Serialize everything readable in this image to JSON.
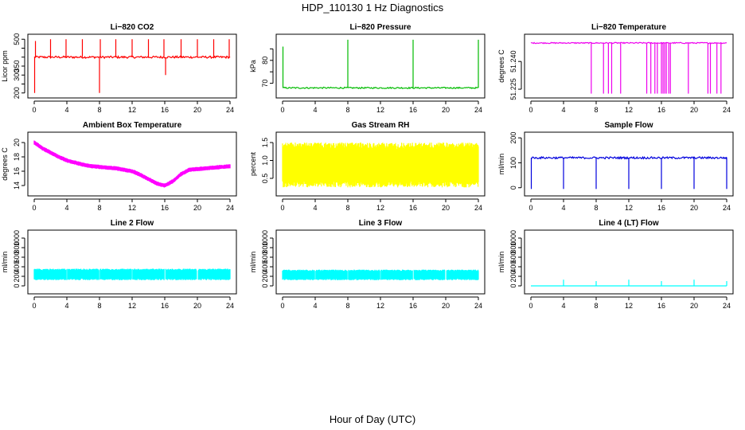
{
  "figure": {
    "title": "HDP_110130  1 Hz Diagnostics",
    "xlabel": "Hour of Day (UTC)"
  },
  "chart_data": [
    {
      "type": "line",
      "title": "Li−820 CO2",
      "ylabel": "Licor ppm",
      "color": "#ff0000",
      "xlim": [
        0,
        24
      ],
      "xticks": [
        0,
        4,
        8,
        12,
        16,
        20,
        24
      ],
      "xtick_labels": [
        "0",
        "4",
        "8",
        "12",
        "16",
        "20",
        "24"
      ],
      "ylim": [
        190,
        510
      ],
      "yticks": [
        200,
        250,
        300,
        350,
        400,
        450,
        500
      ],
      "ytick_labels": [
        "200",
        "",
        "300",
        "350",
        "",
        "",
        "500"
      ],
      "baseline": 400,
      "noise": 6,
      "spikes": [
        [
          0.05,
          200
        ],
        [
          0.15,
          490
        ],
        [
          2,
          500
        ],
        [
          3.9,
          500
        ],
        [
          5.9,
          500
        ],
        [
          8,
          200
        ],
        [
          8.1,
          500
        ],
        [
          10,
          500
        ],
        [
          12,
          500
        ],
        [
          14,
          500
        ],
        [
          15.9,
          500
        ],
        [
          16.1,
          300
        ],
        [
          18,
          500
        ],
        [
          20,
          500
        ],
        [
          22,
          500
        ],
        [
          23.9,
          500
        ]
      ]
    },
    {
      "type": "line",
      "title": "Li−820 Pressure",
      "ylabel": "kPa",
      "color": "#00bb00",
      "xlim": [
        0,
        24
      ],
      "xticks": [
        0,
        4,
        8,
        12,
        16,
        20,
        24
      ],
      "xtick_labels": [
        "0",
        "4",
        "8",
        "12",
        "16",
        "20",
        "24"
      ],
      "ylim": [
        65,
        90
      ],
      "yticks": [
        70,
        75,
        80,
        85
      ],
      "ytick_labels": [
        "70",
        "",
        "80",
        ""
      ],
      "baseline": 68,
      "noise": 0.3,
      "spikes": [
        [
          0.05,
          86
        ],
        [
          8,
          89
        ],
        [
          16,
          89
        ],
        [
          24,
          89
        ]
      ]
    },
    {
      "type": "line",
      "title": "Li−820 Temperature",
      "ylabel": "degrees C",
      "color": "#ee00ee",
      "xlim": [
        0,
        24
      ],
      "xticks": [
        0,
        4,
        8,
        12,
        16,
        20,
        24
      ],
      "xtick_labels": [
        "0",
        "4",
        "8",
        "12",
        "16",
        "20",
        "24"
      ],
      "ylim": [
        51.222,
        51.253
      ],
      "yticks": [
        51.225,
        51.24
      ],
      "ytick_labels": [
        "51.225",
        "51.240"
      ],
      "baseline": 51.25,
      "noise": 0.0003,
      "drops": [
        7.4,
        8.9,
        9.5,
        9.9,
        11,
        14.2,
        14.7,
        15.2,
        15.5,
        16.0,
        16.2,
        16.4,
        16.6,
        16.9,
        17.1,
        19.3,
        21.7,
        22.0,
        22.8,
        23.3
      ]
    },
    {
      "type": "line",
      "title": "Ambient Box Temperature",
      "ylabel": "degrees C",
      "color": "#ff00ff",
      "xlim": [
        0,
        24
      ],
      "xticks": [
        0,
        4,
        8,
        12,
        16,
        20,
        24
      ],
      "xtick_labels": [
        "0",
        "4",
        "8",
        "12",
        "16",
        "20",
        "24"
      ],
      "ylim": [
        13,
        21
      ],
      "yticks": [
        14,
        16,
        18,
        20
      ],
      "ytick_labels": [
        "14",
        "16",
        "18",
        "20"
      ],
      "x": [
        0,
        1,
        2,
        3,
        4,
        5,
        6,
        7,
        8,
        9,
        10,
        11,
        12,
        13,
        14,
        15,
        16,
        17,
        18,
        19,
        20,
        21,
        22,
        23,
        24
      ],
      "y": [
        20,
        19.2,
        18.6,
        18.0,
        17.5,
        17.2,
        16.9,
        16.7,
        16.6,
        16.5,
        16.4,
        16.2,
        16.0,
        15.5,
        14.9,
        14.3,
        14.0,
        14.6,
        15.6,
        16.2,
        16.3,
        16.4,
        16.5,
        16.6,
        16.7
      ],
      "noise": 0.3
    },
    {
      "type": "line",
      "title": "Gas Stream RH",
      "ylabel": "percent",
      "color": "#ffff00",
      "xlim": [
        0,
        24
      ],
      "xticks": [
        0,
        4,
        8,
        12,
        16,
        20,
        24
      ],
      "xtick_labels": [
        "0",
        "4",
        "8",
        "12",
        "16",
        "20",
        "24"
      ],
      "ylim": [
        0.1,
        1.7
      ],
      "yticks": [
        0.5,
        1.0,
        1.5
      ],
      "ytick_labels": [
        "0.5",
        "1.0",
        "1.5"
      ],
      "baseline": 0.8,
      "band": [
        0.25,
        1.5
      ]
    },
    {
      "type": "line",
      "title": "Sample Flow",
      "ylabel": "ml/min",
      "color": "#0000dd",
      "xlim": [
        0,
        24
      ],
      "xticks": [
        0,
        4,
        8,
        12,
        16,
        20,
        24
      ],
      "xtick_labels": [
        "0",
        "4",
        "8",
        "12",
        "16",
        "20",
        "24"
      ],
      "ylim": [
        -20,
        210
      ],
      "yticks": [
        0,
        100,
        200
      ],
      "ytick_labels": [
        "0",
        "100",
        "200"
      ],
      "baseline": 120,
      "noise": 4,
      "drops": [
        [
          0.05,
          -5
        ],
        [
          4,
          -5
        ],
        [
          8,
          -5
        ],
        [
          12,
          -5
        ],
        [
          16,
          -5
        ],
        [
          20,
          -5
        ],
        [
          24,
          -5
        ]
      ]
    },
    {
      "type": "line",
      "title": "Line 2 Flow",
      "ylabel": "ml/min",
      "color": "#00ffff",
      "xlim": [
        0,
        24
      ],
      "xticks": [
        0,
        4,
        8,
        12,
        16,
        20,
        24
      ],
      "xtick_labels": [
        "0",
        "4",
        "8",
        "12",
        "16",
        "20",
        "24"
      ],
      "ylim": [
        -100,
        1100
      ],
      "yticks": [
        0,
        200,
        400,
        600,
        800,
        1000
      ],
      "ytick_labels": [
        "0",
        "200",
        "400",
        "600",
        "800",
        "1000"
      ],
      "band": [
        120,
        360
      ],
      "gaps": [
        4,
        8,
        12,
        16,
        20
      ]
    },
    {
      "type": "line",
      "title": "Line 3 Flow",
      "ylabel": "ml/min",
      "color": "#00ffff",
      "xlim": [
        0,
        24
      ],
      "xticks": [
        0,
        4,
        8,
        12,
        16,
        20,
        24
      ],
      "xtick_labels": [
        "0",
        "4",
        "8",
        "12",
        "16",
        "20",
        "24"
      ],
      "ylim": [
        -100,
        1100
      ],
      "yticks": [
        0,
        200,
        400,
        600,
        800,
        1000
      ],
      "ytick_labels": [
        "0",
        "200",
        "400",
        "600",
        "800",
        "1000"
      ],
      "band": [
        120,
        340
      ],
      "gaps": [
        4,
        8,
        12,
        16,
        20
      ]
    },
    {
      "type": "line",
      "title": "Line 4 (LT) Flow",
      "ylabel": "ml/min",
      "color": "#00ffff",
      "xlim": [
        0,
        24
      ],
      "xticks": [
        0,
        4,
        8,
        12,
        16,
        20,
        24
      ],
      "xtick_labels": [
        "0",
        "4",
        "8",
        "12",
        "16",
        "20",
        "24"
      ],
      "ylim": [
        -100,
        1100
      ],
      "yticks": [
        0,
        200,
        400,
        600,
        800,
        1000
      ],
      "ytick_labels": [
        "0",
        "200",
        "400",
        "600",
        "800",
        "1000"
      ],
      "baseline": 0,
      "spikes": [
        [
          4,
          130
        ],
        [
          8,
          100
        ],
        [
          12,
          130
        ],
        [
          16,
          100
        ],
        [
          20,
          130
        ],
        [
          24,
          100
        ]
      ]
    }
  ]
}
